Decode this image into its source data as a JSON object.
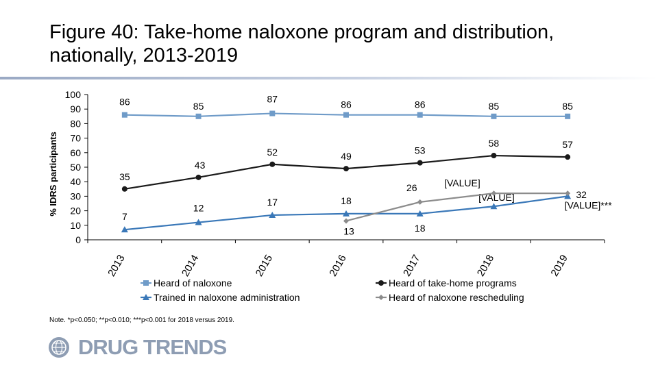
{
  "title": "Figure 40: Take-home naloxone program and distribution, nationally, 2013-2019",
  "note": "Note. *p<0.050; **p<0.010; ***p<0.001 for 2018 versus 2019.",
  "logo": {
    "text": "DRUG TRENDS",
    "icon": "globe-seal-icon"
  },
  "colors": {
    "heard_naloxone": "#6f9bc8",
    "take_home": "#1a1a1a",
    "trained": "#3a78b8",
    "rescheduling": "#8c8c8c",
    "axis": "#000000"
  },
  "chart_data": {
    "type": "line",
    "title": "",
    "xlabel": "",
    "ylabel": "% IDRS participants",
    "ylim": [
      0,
      100
    ],
    "yticks": [
      0,
      10,
      20,
      30,
      40,
      50,
      60,
      70,
      80,
      90,
      100
    ],
    "categories": [
      "2013",
      "2014",
      "2015",
      "2016",
      "2017",
      "2018",
      "2019"
    ],
    "legend_position": "bottom",
    "series": [
      {
        "name": "Heard of naloxone",
        "key": "heard_naloxone",
        "marker": "square",
        "values": [
          86,
          85,
          87,
          86,
          86,
          85,
          85
        ],
        "labels": [
          "86",
          "85",
          "87",
          "86",
          "86",
          "85",
          "85"
        ]
      },
      {
        "name": "Heard of take-home programs",
        "key": "take_home",
        "marker": "circle",
        "values": [
          35,
          43,
          52,
          49,
          53,
          58,
          57
        ],
        "labels": [
          "35",
          "43",
          "52",
          "49",
          "53",
          "58",
          "57"
        ]
      },
      {
        "name": "Trained in naloxone administration",
        "key": "trained",
        "marker": "triangle",
        "values": [
          7,
          12,
          17,
          18,
          18,
          23,
          30
        ],
        "labels": [
          "7",
          "12",
          "17",
          "18",
          "18",
          "[VALUE]",
          "[VALUE]***"
        ]
      },
      {
        "name": "Heard of naloxone rescheduling",
        "key": "rescheduling",
        "marker": "diamond",
        "values": [
          null,
          null,
          null,
          13,
          26,
          32,
          32
        ],
        "labels": [
          null,
          null,
          null,
          "13",
          "26",
          "[VALUE]",
          "32"
        ]
      }
    ]
  }
}
